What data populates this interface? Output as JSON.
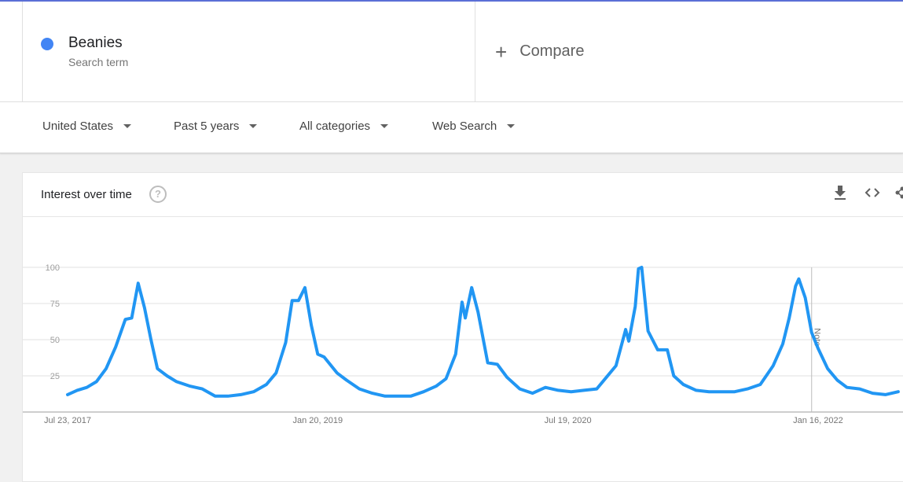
{
  "search": {
    "term": "Beanies",
    "term_type": "Search term",
    "term_color": "#4285f4",
    "compare_label": "Compare"
  },
  "filters": {
    "region": "United States",
    "period": "Past 5 years",
    "category": "All categories",
    "search_type": "Web Search"
  },
  "card": {
    "title": "Interest over time",
    "help_icon": "help-circle-icon",
    "tools": [
      "download-icon",
      "embed-code-icon",
      "share-icon"
    ]
  },
  "chart_data": {
    "type": "line",
    "title": "",
    "xlabel": "",
    "ylabel": "",
    "ylim": [
      0,
      100
    ],
    "yticks": [
      25,
      50,
      75,
      100
    ],
    "grid": true,
    "x_tick_labels": [
      "Jul 23, 2017",
      "Jan 20, 2019",
      "Jul 19, 2020",
      "Jan 16, 2022"
    ],
    "x_tick_dates": [
      "2017-07-23",
      "2019-01-20",
      "2020-07-19",
      "2022-01-16"
    ],
    "x_start": "2017-07-23",
    "x_end": "2022-07-17",
    "note_label": "Note",
    "note_date": "2022-01-02",
    "series_color": "#2196f3",
    "series": [
      {
        "name": "Beanies",
        "points": [
          [
            "2017-07-23",
            12
          ],
          [
            "2017-08-13",
            15
          ],
          [
            "2017-09-03",
            17
          ],
          [
            "2017-09-24",
            21
          ],
          [
            "2017-10-15",
            30
          ],
          [
            "2017-11-05",
            45
          ],
          [
            "2017-11-26",
            64
          ],
          [
            "2017-12-10",
            65
          ],
          [
            "2017-12-24",
            89
          ],
          [
            "2018-01-07",
            72
          ],
          [
            "2018-01-21",
            50
          ],
          [
            "2018-02-04",
            30
          ],
          [
            "2018-02-25",
            25
          ],
          [
            "2018-03-18",
            21
          ],
          [
            "2018-04-15",
            18
          ],
          [
            "2018-05-13",
            16
          ],
          [
            "2018-06-10",
            11
          ],
          [
            "2018-07-08",
            11
          ],
          [
            "2018-08-05",
            12
          ],
          [
            "2018-09-02",
            14
          ],
          [
            "2018-09-30",
            19
          ],
          [
            "2018-10-21",
            27
          ],
          [
            "2018-11-11",
            48
          ],
          [
            "2018-11-25",
            77
          ],
          [
            "2018-12-09",
            77
          ],
          [
            "2018-12-23",
            86
          ],
          [
            "2019-01-06",
            60
          ],
          [
            "2019-01-20",
            40
          ],
          [
            "2019-02-03",
            38
          ],
          [
            "2019-03-03",
            27
          ],
          [
            "2019-03-24",
            22
          ],
          [
            "2019-04-21",
            16
          ],
          [
            "2019-05-19",
            13
          ],
          [
            "2019-06-16",
            11
          ],
          [
            "2019-07-14",
            11
          ],
          [
            "2019-08-11",
            11
          ],
          [
            "2019-09-08",
            14
          ],
          [
            "2019-10-06",
            18
          ],
          [
            "2019-10-27",
            23
          ],
          [
            "2019-11-17",
            40
          ],
          [
            "2019-12-01",
            76
          ],
          [
            "2019-12-08",
            65
          ],
          [
            "2019-12-22",
            86
          ],
          [
            "2020-01-05",
            69
          ],
          [
            "2020-01-26",
            34
          ],
          [
            "2020-02-16",
            33
          ],
          [
            "2020-03-08",
            24
          ],
          [
            "2020-04-05",
            16
          ],
          [
            "2020-05-03",
            13
          ],
          [
            "2020-05-31",
            17
          ],
          [
            "2020-06-28",
            15
          ],
          [
            "2020-07-26",
            14
          ],
          [
            "2020-08-23",
            15
          ],
          [
            "2020-09-20",
            16
          ],
          [
            "2020-10-11",
            24
          ],
          [
            "2020-11-01",
            32
          ],
          [
            "2020-11-22",
            57
          ],
          [
            "2020-11-29",
            49
          ],
          [
            "2020-12-13",
            73
          ],
          [
            "2020-12-20",
            99
          ],
          [
            "2020-12-27",
            100
          ],
          [
            "2021-01-10",
            56
          ],
          [
            "2021-01-31",
            43
          ],
          [
            "2021-02-21",
            43
          ],
          [
            "2021-03-07",
            25
          ],
          [
            "2021-03-28",
            19
          ],
          [
            "2021-04-25",
            15
          ],
          [
            "2021-05-23",
            14
          ],
          [
            "2021-06-20",
            14
          ],
          [
            "2021-07-18",
            14
          ],
          [
            "2021-08-15",
            16
          ],
          [
            "2021-09-12",
            19
          ],
          [
            "2021-10-10",
            32
          ],
          [
            "2021-10-31",
            47
          ],
          [
            "2021-11-14",
            65
          ],
          [
            "2021-11-28",
            87
          ],
          [
            "2021-12-05",
            92
          ],
          [
            "2021-12-19",
            79
          ],
          [
            "2022-01-02",
            55
          ],
          [
            "2022-01-16",
            44
          ],
          [
            "2022-02-06",
            30
          ],
          [
            "2022-02-27",
            22
          ],
          [
            "2022-03-20",
            17
          ],
          [
            "2022-04-17",
            16
          ],
          [
            "2022-05-15",
            13
          ],
          [
            "2022-06-12",
            12
          ],
          [
            "2022-07-10",
            14
          ]
        ]
      }
    ]
  }
}
